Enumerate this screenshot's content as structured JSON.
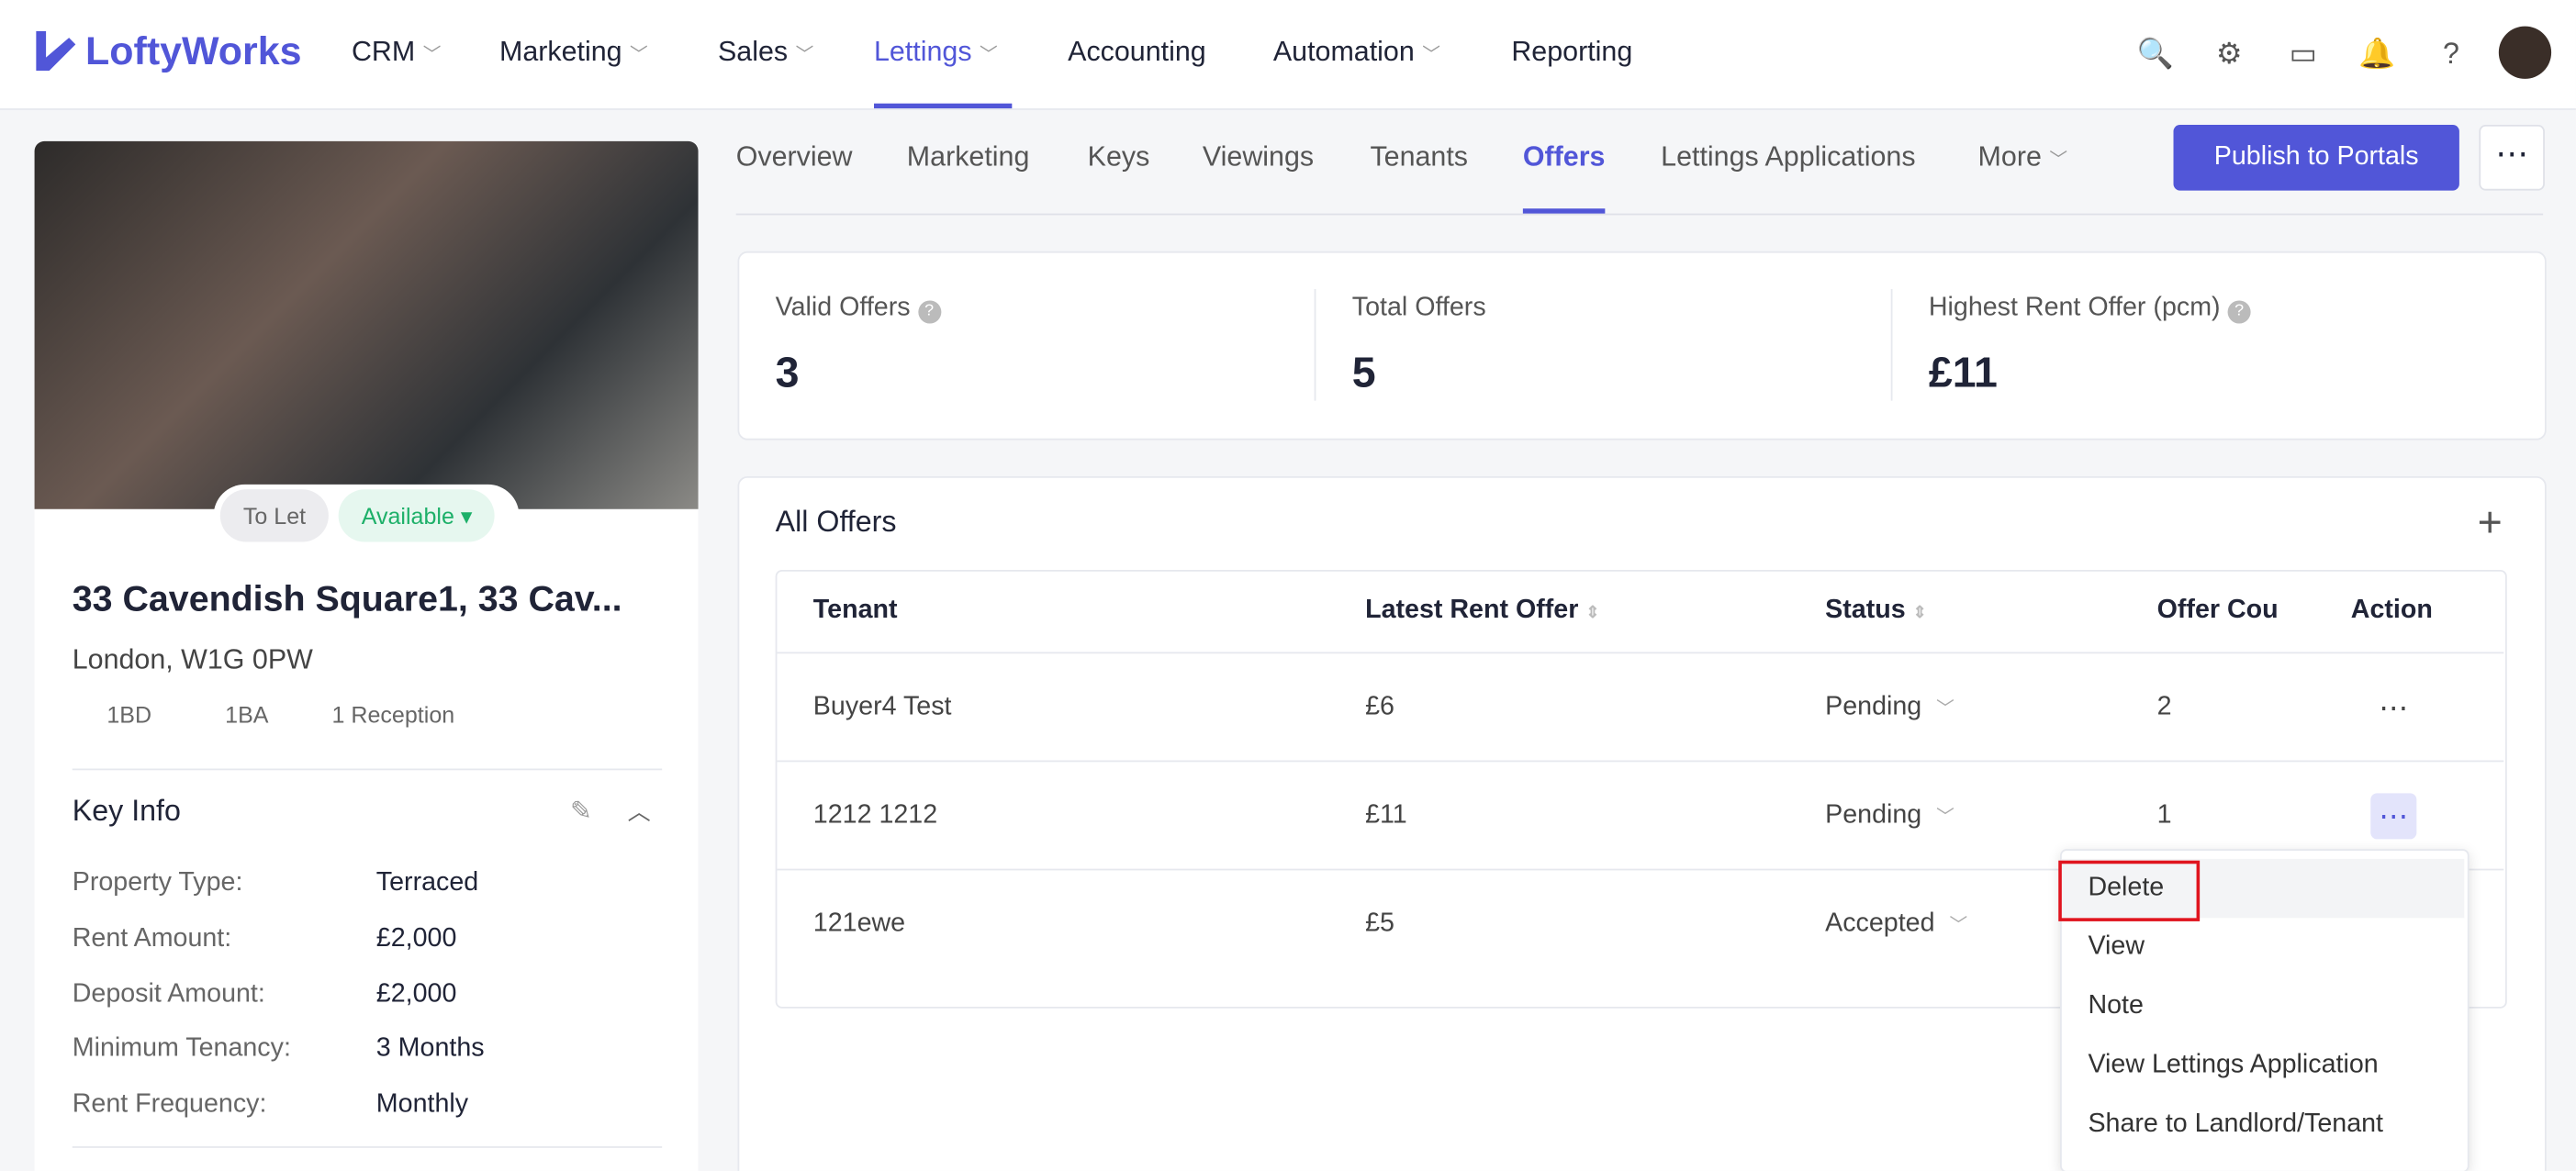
{
  "nav": {
    "logo": "LoftyWorks",
    "items": [
      "CRM",
      "Marketing",
      "Sales",
      "Lettings",
      "Accounting",
      "Automation",
      "Reporting"
    ],
    "active": 3
  },
  "property": {
    "tags": [
      "To Let",
      "Available"
    ],
    "title": "33 Cavendish Square1, 33 Cav...",
    "address": "London, W1G 0PW",
    "features": [
      "1BD",
      "1BA",
      "1 Reception"
    ],
    "key_info": {
      "title": "Key Info",
      "rows": [
        [
          "Property Type:",
          "Terraced"
        ],
        [
          "Rent Amount:",
          "£2,000"
        ],
        [
          "Deposit Amount:",
          "£2,000"
        ],
        [
          "Minimum Tenancy:",
          "3 Months"
        ],
        [
          "Rent Frequency:",
          "Monthly"
        ]
      ]
    }
  },
  "tabs": {
    "items": [
      "Overview",
      "Marketing",
      "Keys",
      "Viewings",
      "Tenants",
      "Offers",
      "Lettings Applications",
      "More"
    ],
    "active": 5,
    "button": "Publish to Portals"
  },
  "stats": [
    {
      "label": "Valid Offers",
      "value": "3"
    },
    {
      "label": "Total Offers",
      "value": "5"
    },
    {
      "label": "Highest Rent Offer (pcm)",
      "value": "£11"
    }
  ],
  "offers": {
    "title": "All Offers",
    "columns": [
      "Tenant",
      "Latest Rent Offer",
      "Status",
      "Offer Cou",
      "Action"
    ],
    "rows": [
      [
        "Buyer4 Test",
        "£6",
        "Pending",
        "2"
      ],
      [
        "1212 1212",
        "£11",
        "Pending",
        "1"
      ],
      [
        "121ewe",
        "£5",
        "Accepted",
        ""
      ]
    ]
  },
  "menu": [
    "Delete",
    "View",
    "Note",
    "View Lettings Application",
    "Share to Landlord/Tenant"
  ]
}
